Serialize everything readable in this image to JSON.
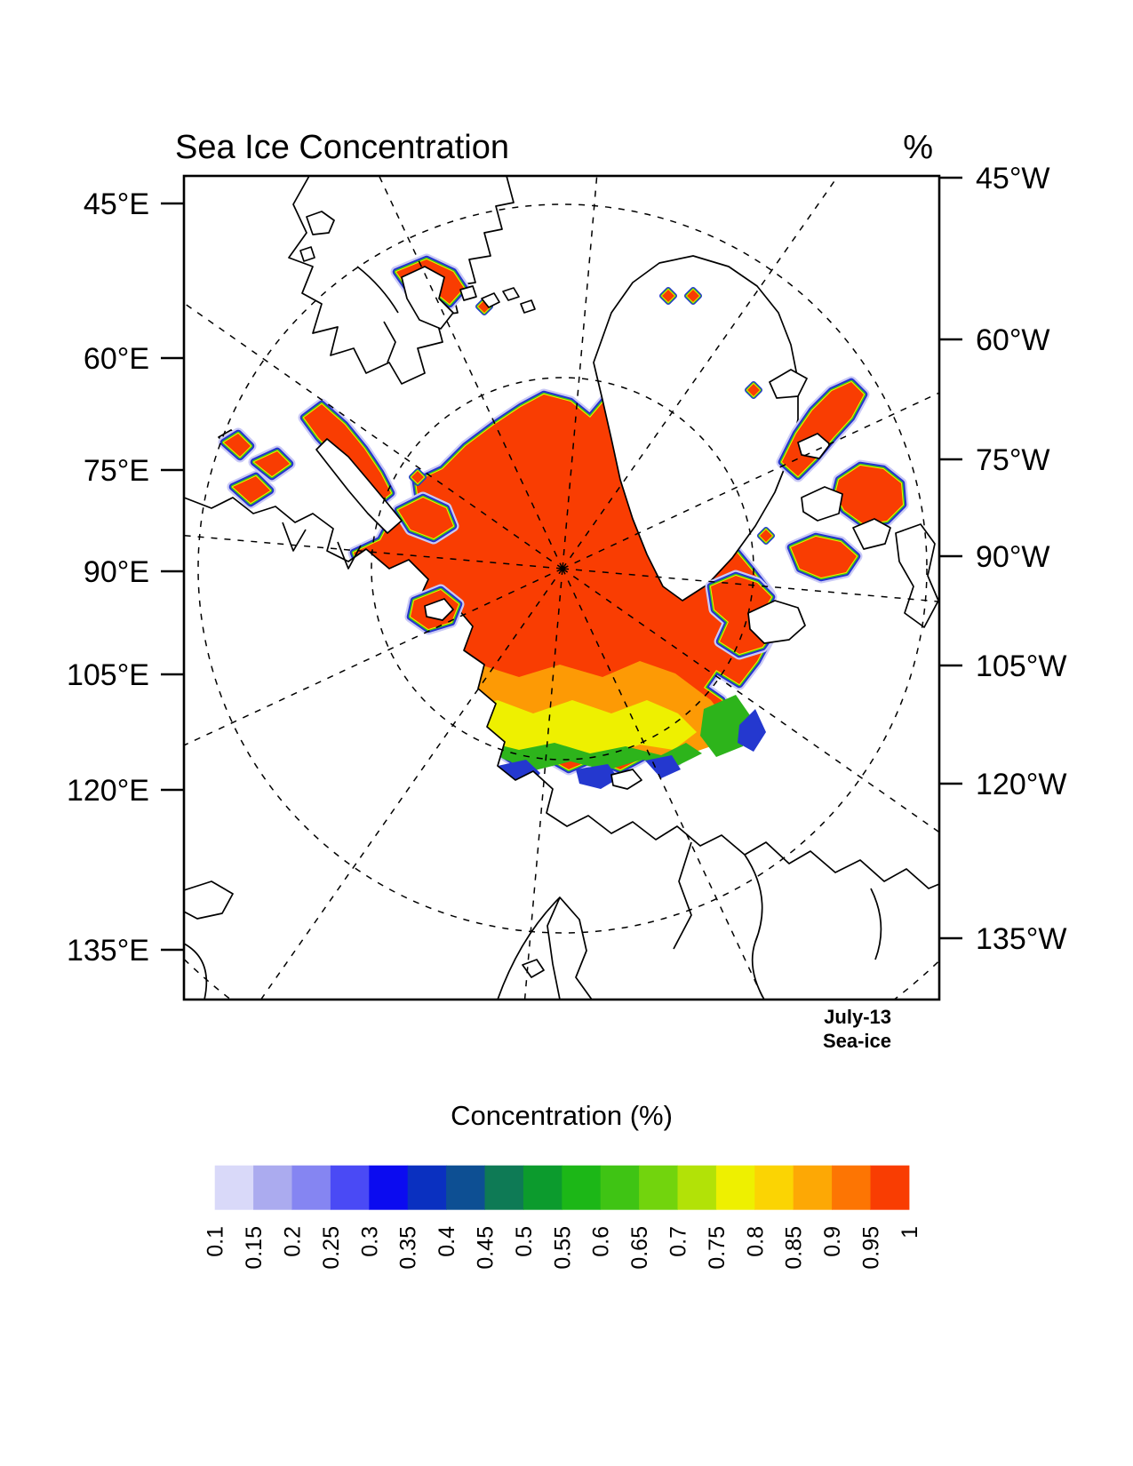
{
  "header": {
    "title": "Sea Ice Concentration",
    "units": "%"
  },
  "axes": {
    "left_labels": [
      "45°E",
      "60°E",
      "75°E",
      "90°E",
      "105°E",
      "120°E",
      "135°E"
    ],
    "right_labels": [
      "45°W",
      "60°W",
      "75°W",
      "90°W",
      "105°W",
      "120°W",
      "135°W"
    ]
  },
  "annotation": {
    "line1": "July-13",
    "line2": "Sea-ice"
  },
  "colorbar": {
    "title": "Concentration (%)",
    "tick_labels": [
      "0.1",
      "0.15",
      "0.2",
      "0.25",
      "0.3",
      "0.35",
      "0.4",
      "0.45",
      "0.5",
      "0.55",
      "0.6",
      "0.65",
      "0.7",
      "0.75",
      "0.8",
      "0.85",
      "0.9",
      "0.95",
      "1"
    ],
    "colors": [
      "#d9d9f9",
      "#ababef",
      "#8585f2",
      "#4a4af5",
      "#0b0bf0",
      "#0a30c0",
      "#0d4f93",
      "#0e7a55",
      "#0c9b2d",
      "#1cb717",
      "#3fc414",
      "#72d40d",
      "#b2e207",
      "#eef000",
      "#fbd403",
      "#fda805",
      "#fd7503",
      "#f93d02"
    ]
  },
  "chart_data": {
    "type": "heatmap",
    "title": "Sea Ice Concentration",
    "units": "%",
    "date_label": "July-13",
    "variable_label": "Sea-ice",
    "projection": "north-polar-stereographic",
    "left_edge_meridians": [
      "45°E",
      "60°E",
      "75°E",
      "90°E",
      "105°E",
      "120°E",
      "135°E"
    ],
    "right_edge_meridians": [
      "45°W",
      "60°W",
      "75°W",
      "90°W",
      "105°W",
      "120°W",
      "135°W"
    ],
    "colorbar_title": "Concentration (%)",
    "contour_levels": [
      0.1,
      0.15,
      0.2,
      0.25,
      0.3,
      0.35,
      0.4,
      0.45,
      0.5,
      0.55,
      0.6,
      0.65,
      0.7,
      0.75,
      0.8,
      0.85,
      0.9,
      0.95,
      1
    ],
    "palette": [
      "#d9d9f9",
      "#ababef",
      "#8585f2",
      "#4a4af5",
      "#0b0bf0",
      "#0a30c0",
      "#0d4f93",
      "#0e7a55",
      "#0c9b2d",
      "#1cb717",
      "#3fc414",
      "#72d40d",
      "#b2e207",
      "#eef000",
      "#fbd403",
      "#fda805",
      "#fd7503",
      "#f93d02"
    ],
    "features": [
      "Central Arctic ice pack almost entirely at concentration 0.95-1 (red-orange)",
      "Narrow marginal bands (yellow, green, blue outline) ring every ice patch edge; outermost 0.1 contour drawn as dark blue line with pale lavender halo",
      "Broad low-concentration gradient (orange to yellow to green to blue, ~0.9 down to 0.1) along the southern pack edge toward the Pacific sector (bottom center of map)",
      "Red arm of high concentration ice extends along northeast Greenland coast",
      "Scattered red patches in Canadian Arctic Archipelago and Baffin Bay (right side)",
      "Small red strips near Svalbard, Franz Josef Land, Novaya Zemlya and Severnaya Zemlya (left side)",
      "Dashed graticule: meridians radiating from the pole and latitude circles",
      "Thin black coastlines on white land/ocean background"
    ]
  }
}
